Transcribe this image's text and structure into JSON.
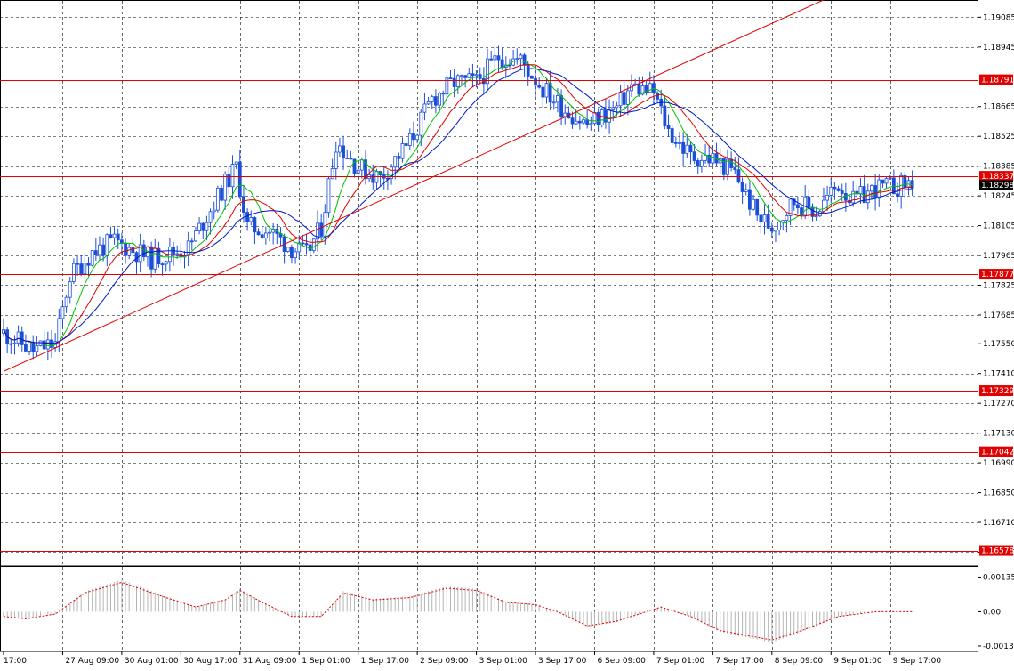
{
  "chart_data": {
    "type": "candlestick",
    "symbol_hint": "EURUSD H1",
    "grid": true,
    "colors": {
      "background": "#ffffff",
      "grid": "#000000",
      "candle": "#1c4fd8",
      "ma_fast": "#00c000",
      "ma_mid": "#e00000",
      "ma_slow": "#0018c8",
      "level_line": "#e00000",
      "trend_line": "#e00000",
      "level_label_bg": "#e00000",
      "current_label_bg": "#000000",
      "osc_hist": "#b4b4b4",
      "osc_signal": "#e00000"
    },
    "price_axis": {
      "ylim": [
        1.16505,
        1.19145
      ],
      "ticks": [
        "1.19085",
        "1.18945",
        "1.18665",
        "1.18525",
        "1.18385",
        "1.18245",
        "1.18105",
        "1.17965",
        "1.17825",
        "1.17685",
        "1.17550",
        "1.17410",
        "1.17270",
        "1.17130",
        "1.16990",
        "1.16850",
        "1.16710",
        "1.16570"
      ]
    },
    "time_axis": {
      "labels": [
        "17:00",
        "27 Aug 09:00",
        "30 Aug 01:00",
        "30 Aug 17:00",
        "31 Aug 09:00",
        "1 Sep 01:00",
        "1 Sep 17:00",
        "2 Sep 09:00",
        "3 Sep 01:00",
        "3 Sep 17:00",
        "6 Sep 09:00",
        "7 Sep 01:00",
        "7 Sep 17:00",
        "8 Sep 09:00",
        "9 Sep 01:00",
        "9 Sep 17:00"
      ],
      "bar_index": [
        0,
        16,
        32,
        48,
        64,
        80,
        96,
        112,
        128,
        144,
        160,
        176,
        192,
        208,
        224,
        240
      ],
      "n_bars": 256
    },
    "horizontal_levels": [
      {
        "price": 1.18791,
        "label": "1.18791"
      },
      {
        "price": 1.18337,
        "label": "1.18337"
      },
      {
        "price": 1.17877,
        "label": "1.17877"
      },
      {
        "price": 1.17329,
        "label": "1.17329"
      },
      {
        "price": 1.17042,
        "label": "1.17042"
      },
      {
        "price": 1.16578,
        "label": "1.16578"
      }
    ],
    "current_price": {
      "price": 1.18298,
      "label": "1.18298"
    },
    "trend_line": {
      "from": {
        "bar": 0,
        "price": 1.1742
      },
      "to": {
        "bar": 239,
        "price": 1.193
      }
    },
    "price_path": [
      [
        0,
        1.176
      ],
      [
        8,
        1.1752
      ],
      [
        14,
        1.1755
      ],
      [
        18,
        1.1787
      ],
      [
        24,
        1.1798
      ],
      [
        30,
        1.1803
      ],
      [
        40,
        1.1795
      ],
      [
        50,
        1.18
      ],
      [
        60,
        1.183
      ],
      [
        63,
        1.1838
      ],
      [
        66,
        1.181
      ],
      [
        72,
        1.1808
      ],
      [
        78,
        1.18
      ],
      [
        82,
        1.1797
      ],
      [
        86,
        1.181
      ],
      [
        90,
        1.185
      ],
      [
        96,
        1.1838
      ],
      [
        102,
        1.1833
      ],
      [
        110,
        1.185
      ],
      [
        116,
        1.187
      ],
      [
        122,
        1.1878
      ],
      [
        128,
        1.1878
      ],
      [
        134,
        1.189
      ],
      [
        140,
        1.1888
      ],
      [
        146,
        1.1875
      ],
      [
        152,
        1.1865
      ],
      [
        158,
        1.1858
      ],
      [
        166,
        1.1866
      ],
      [
        170,
        1.1876
      ],
      [
        176,
        1.1873
      ],
      [
        180,
        1.1855
      ],
      [
        186,
        1.1843
      ],
      [
        192,
        1.1842
      ],
      [
        198,
        1.1835
      ],
      [
        204,
        1.1815
      ],
      [
        208,
        1.181
      ],
      [
        214,
        1.1822
      ],
      [
        220,
        1.1817
      ],
      [
        226,
        1.183
      ],
      [
        230,
        1.1822
      ],
      [
        236,
        1.1828
      ],
      [
        242,
        1.1829
      ],
      [
        246,
        1.1831
      ]
    ],
    "oscillator": {
      "ticks": [
        "0.001355",
        "0.00",
        "-0.00134"
      ],
      "ylim": [
        -0.00155,
        0.00165
      ],
      "path": [
        [
          0,
          -0.0002
        ],
        [
          6,
          -0.0003
        ],
        [
          14,
          -0.0001
        ],
        [
          22,
          0.0008
        ],
        [
          32,
          0.00125
        ],
        [
          42,
          0.0007
        ],
        [
          52,
          0.0002
        ],
        [
          60,
          0.0005
        ],
        [
          64,
          0.0009
        ],
        [
          70,
          0.0004
        ],
        [
          78,
          -0.0002
        ],
        [
          86,
          -0.0002
        ],
        [
          92,
          0.0008
        ],
        [
          100,
          0.0005
        ],
        [
          110,
          0.0006
        ],
        [
          120,
          0.001
        ],
        [
          128,
          0.0009
        ],
        [
          136,
          0.0004
        ],
        [
          144,
          0.0003
        ],
        [
          150,
          0.0
        ],
        [
          158,
          -0.0006
        ],
        [
          166,
          -0.0004
        ],
        [
          178,
          0.0002
        ],
        [
          186,
          -0.0002
        ],
        [
          194,
          -0.0008
        ],
        [
          208,
          -0.0012
        ],
        [
          216,
          -0.0008
        ],
        [
          226,
          -0.0002
        ],
        [
          236,
          0.0
        ],
        [
          246,
          0.0
        ]
      ]
    }
  }
}
